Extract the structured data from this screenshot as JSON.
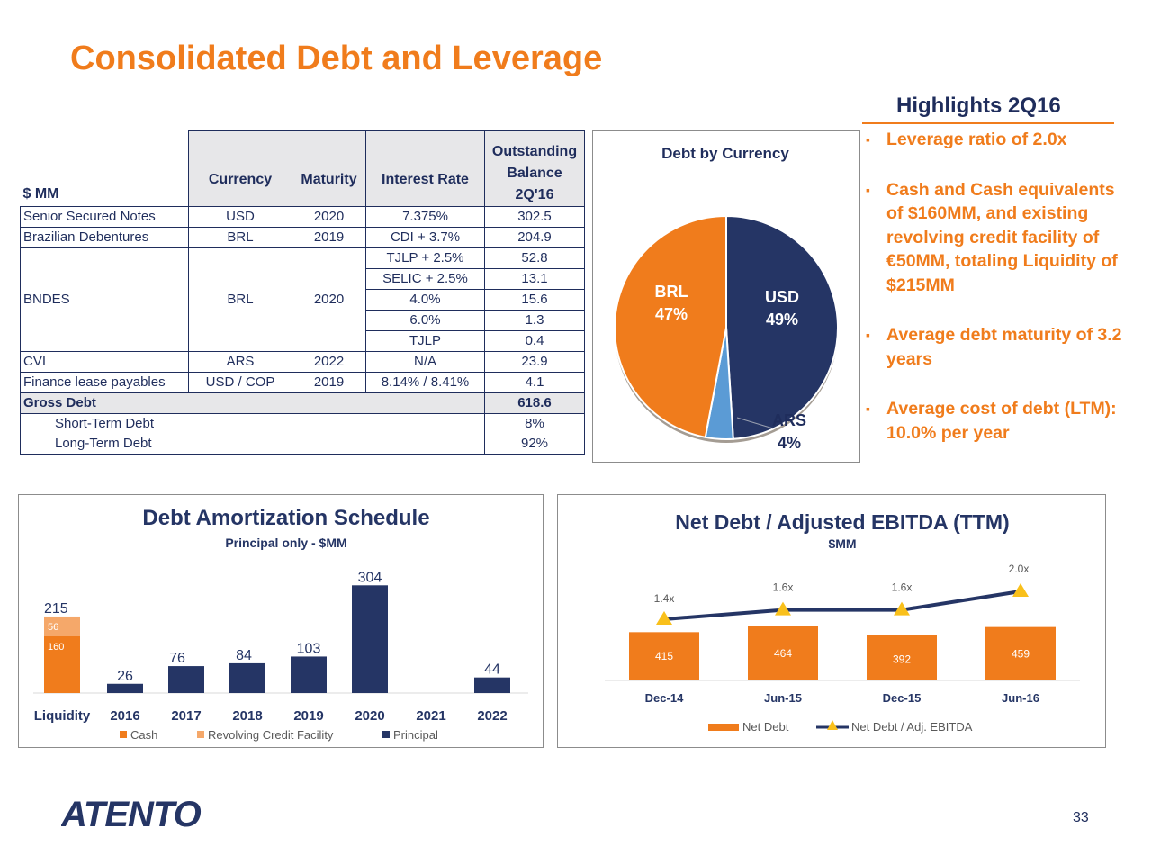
{
  "title": "Consolidated Debt and Leverage",
  "debt_table": {
    "unit_label": "$ MM",
    "headers": {
      "currency": "Currency",
      "maturity": "Maturity",
      "interest_rate": "Interest Rate",
      "balance_line1": "Outstanding",
      "balance_line2": "Balance",
      "balance_line3": "2Q'16"
    },
    "rows": [
      {
        "name": "Senior Secured Notes",
        "currency": "USD",
        "maturity": "2020",
        "rate": "7.375%",
        "balance": "302.5"
      },
      {
        "name": "Brazilian Debentures",
        "currency": "BRL",
        "maturity": "2019",
        "rate": "CDI + 3.7%",
        "balance": "204.9"
      }
    ],
    "bndes": {
      "name": "BNDES",
      "currency": "BRL",
      "maturity": "2020",
      "tranches": [
        {
          "rate": "TJLP + 2.5%",
          "balance": "52.8"
        },
        {
          "rate": "SELIC + 2.5%",
          "balance": "13.1"
        },
        {
          "rate": "4.0%",
          "balance": "15.6"
        },
        {
          "rate": "6.0%",
          "balance": "1.3"
        },
        {
          "rate": "TJLP",
          "balance": "0.4"
        }
      ]
    },
    "rows_after": [
      {
        "name": "CVI",
        "currency": "ARS",
        "maturity": "2022",
        "rate": "N/A",
        "balance": "23.9"
      },
      {
        "name": "Finance lease payables",
        "currency": "USD / COP",
        "maturity": "2019",
        "rate": "8.14% / 8.41%",
        "balance": "4.1"
      }
    ],
    "gross": {
      "name": "Gross Debt",
      "balance": "618.6"
    },
    "short_term": {
      "name": "Short-Term Debt",
      "balance": "8%"
    },
    "long_term": {
      "name": "Long-Term Debt",
      "balance": "92%"
    }
  },
  "chart_data": [
    {
      "type": "pie",
      "title": "Debt by Currency",
      "labels": [
        "USD",
        "ARS",
        "BRL"
      ],
      "values": [
        49,
        4,
        47
      ],
      "value_labels": [
        "49%",
        "4%",
        "47%"
      ],
      "colors": [
        "#253565",
        "#5b9bd5",
        "#f07c1c"
      ]
    },
    {
      "type": "bar",
      "title": "Debt Amortization Schedule",
      "subtitle": "Principal only - $MM",
      "categories": [
        "Liquidity",
        "2016",
        "2017",
        "2018",
        "2019",
        "2020",
        "2021",
        "2022"
      ],
      "series": [
        {
          "name": "Cash",
          "values": [
            160,
            null,
            null,
            null,
            null,
            null,
            null,
            null
          ],
          "color": "#f07c1c"
        },
        {
          "name": "Revolving Credit Facility",
          "values": [
            56,
            null,
            null,
            null,
            null,
            null,
            null,
            null
          ],
          "color": "#f5a86a"
        },
        {
          "name": "Principal",
          "values": [
            null,
            26,
            76,
            84,
            103,
            304,
            null,
            44
          ],
          "color": "#253565"
        }
      ],
      "total_labels": [
        "215",
        "26",
        "76",
        "84",
        "103",
        "304",
        "",
        "44"
      ],
      "stacked": true,
      "ylim": [
        0,
        320
      ]
    },
    {
      "type": "bar",
      "title": "Net Debt / Adjusted EBITDA (TTM)",
      "subtitle": "$MM",
      "categories": [
        "Dec-14",
        "Jun-15",
        "Dec-15",
        "Jun-16"
      ],
      "series": [
        {
          "name": "Net Debt",
          "values": [
            415,
            464,
            392,
            459
          ],
          "color": "#f07c1c"
        },
        {
          "name": "Net Debt / Adj. EBITDA",
          "values": [
            1.4,
            1.6,
            1.6,
            2.0
          ],
          "value_labels": [
            "1.4x",
            "1.6x",
            "1.6x",
            "2.0x"
          ],
          "color": "#253565",
          "marker_color": "#f9c01b"
        }
      ]
    }
  ],
  "highlights": {
    "title": "Highlights 2Q16",
    "bullet": "▪",
    "items": [
      "Leverage ratio of 2.0x",
      "Cash and Cash equivalents of $160MM, and existing revolving credit facility of €50MM, totaling Liquidity of $215MM",
      "Average debt maturity of 3.2 years",
      "Average cost of debt (LTM): 10.0% per year"
    ]
  },
  "logo_text": "ATENTO",
  "page_number": "33"
}
